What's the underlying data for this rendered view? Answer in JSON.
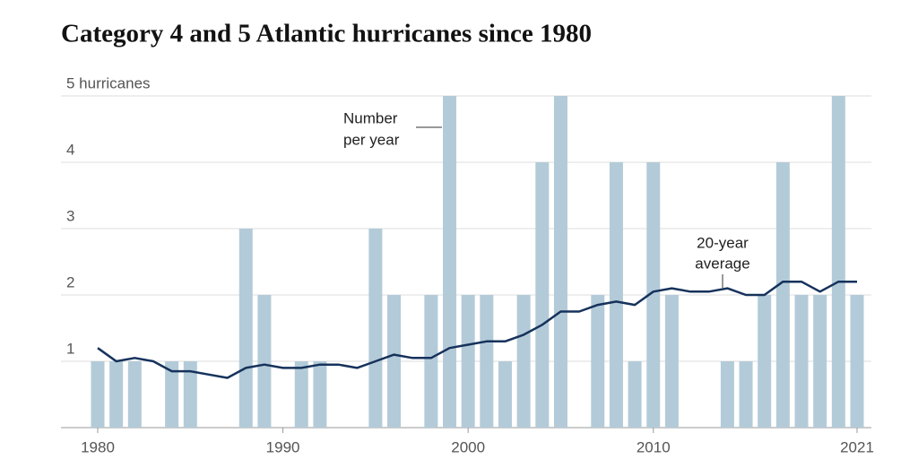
{
  "chart_data": {
    "type": "bar-line",
    "title": "Category 4 and 5 Atlantic hurricanes since 1980",
    "x": [
      1980,
      1981,
      1982,
      1983,
      1984,
      1985,
      1986,
      1987,
      1988,
      1989,
      1990,
      1991,
      1992,
      1993,
      1994,
      1995,
      1996,
      1997,
      1998,
      1999,
      2000,
      2001,
      2002,
      2003,
      2004,
      2005,
      2006,
      2007,
      2008,
      2009,
      2010,
      2011,
      2012,
      2013,
      2014,
      2015,
      2016,
      2017,
      2018,
      2019,
      2020,
      2021
    ],
    "series": [
      {
        "type": "bar",
        "color": "#b3cbd8",
        "values": [
          1,
          1,
          1,
          0,
          1,
          1,
          0,
          0,
          3,
          2,
          0,
          1,
          1,
          0,
          0,
          3,
          2,
          0,
          2,
          5,
          2,
          2,
          1,
          2,
          4,
          5,
          0,
          2,
          4,
          1,
          4,
          2,
          0,
          0,
          1,
          1,
          2,
          4,
          2,
          2,
          5,
          2
        ]
      },
      {
        "type": "line",
        "color": "#16325c",
        "values": [
          1.2,
          1.0,
          1.05,
          1.0,
          0.85,
          0.85,
          0.8,
          0.75,
          0.9,
          0.95,
          0.9,
          0.9,
          0.95,
          0.95,
          0.9,
          1.0,
          1.1,
          1.05,
          1.05,
          1.2,
          1.25,
          1.3,
          1.3,
          1.4,
          1.55,
          1.75,
          1.75,
          1.85,
          1.9,
          1.85,
          2.05,
          2.1,
          2.05,
          2.05,
          2.1,
          2.0,
          2.0,
          2.2,
          2.2,
          2.05,
          2.2,
          2.2
        ]
      }
    ],
    "xlim": [
      1980,
      2021
    ],
    "xticks": [
      1980,
      1990,
      2000,
      2010,
      2021
    ],
    "ylim": [
      0,
      5
    ],
    "yticks": [
      1,
      2,
      3,
      4,
      {
        "value": 5,
        "label": "5 hurricanes"
      }
    ],
    "grid": true,
    "annotations": [
      {
        "lines": [
          "Number",
          "per year"
        ]
      },
      {
        "lines": [
          "20-year",
          "average"
        ]
      }
    ]
  }
}
